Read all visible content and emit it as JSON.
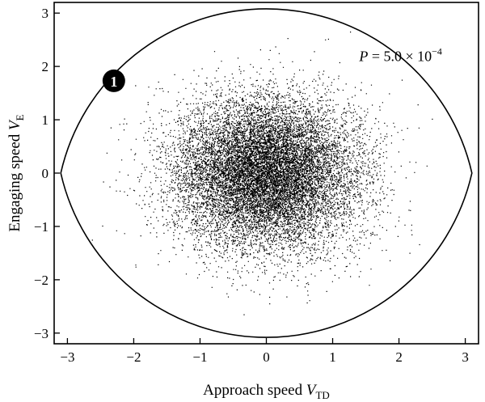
{
  "chart_data": {
    "type": "scatter",
    "title": "",
    "xlabel": "Approach speed",
    "xlabel_var": "V",
    "xlabel_sub": "TD",
    "ylabel": "Engaging speed",
    "ylabel_var": "V",
    "ylabel_sub": "E",
    "xlim": [
      -3.2,
      3.2
    ],
    "ylim": [
      -3.2,
      3.2
    ],
    "x_ticks": [
      -3,
      -2,
      -1,
      0,
      1,
      2,
      3
    ],
    "y_ticks": [
      -3,
      -2,
      -1,
      0,
      1,
      2,
      3
    ],
    "x_tick_labels": [
      "−3",
      "−2",
      "−1",
      "0",
      "1",
      "2",
      "3"
    ],
    "y_tick_labels": [
      "−3",
      "−2",
      "−1",
      "0",
      "1",
      "2",
      "3"
    ],
    "grid": false,
    "scatter_distribution": {
      "kind": "bivariate-normal",
      "n_points": 14000,
      "mean": [
        0,
        0
      ],
      "std": [
        0.7,
        0.7
      ],
      "seed": 7
    },
    "boundary": {
      "shape": "lens",
      "vertices_x": [
        -3.1,
        3.1
      ],
      "apex_y": [
        3.08,
        -3.08
      ],
      "color": "#000000"
    },
    "annotations": [
      {
        "text_parts": [
          "P",
          " = 5.0 × 10",
          "−4"
        ],
        "x": 1.4,
        "y": 2.1
      }
    ],
    "markers": [
      {
        "label": "1",
        "x": -2.3,
        "y": 1.73,
        "color": "#000000"
      }
    ],
    "point_color": "#000000"
  }
}
